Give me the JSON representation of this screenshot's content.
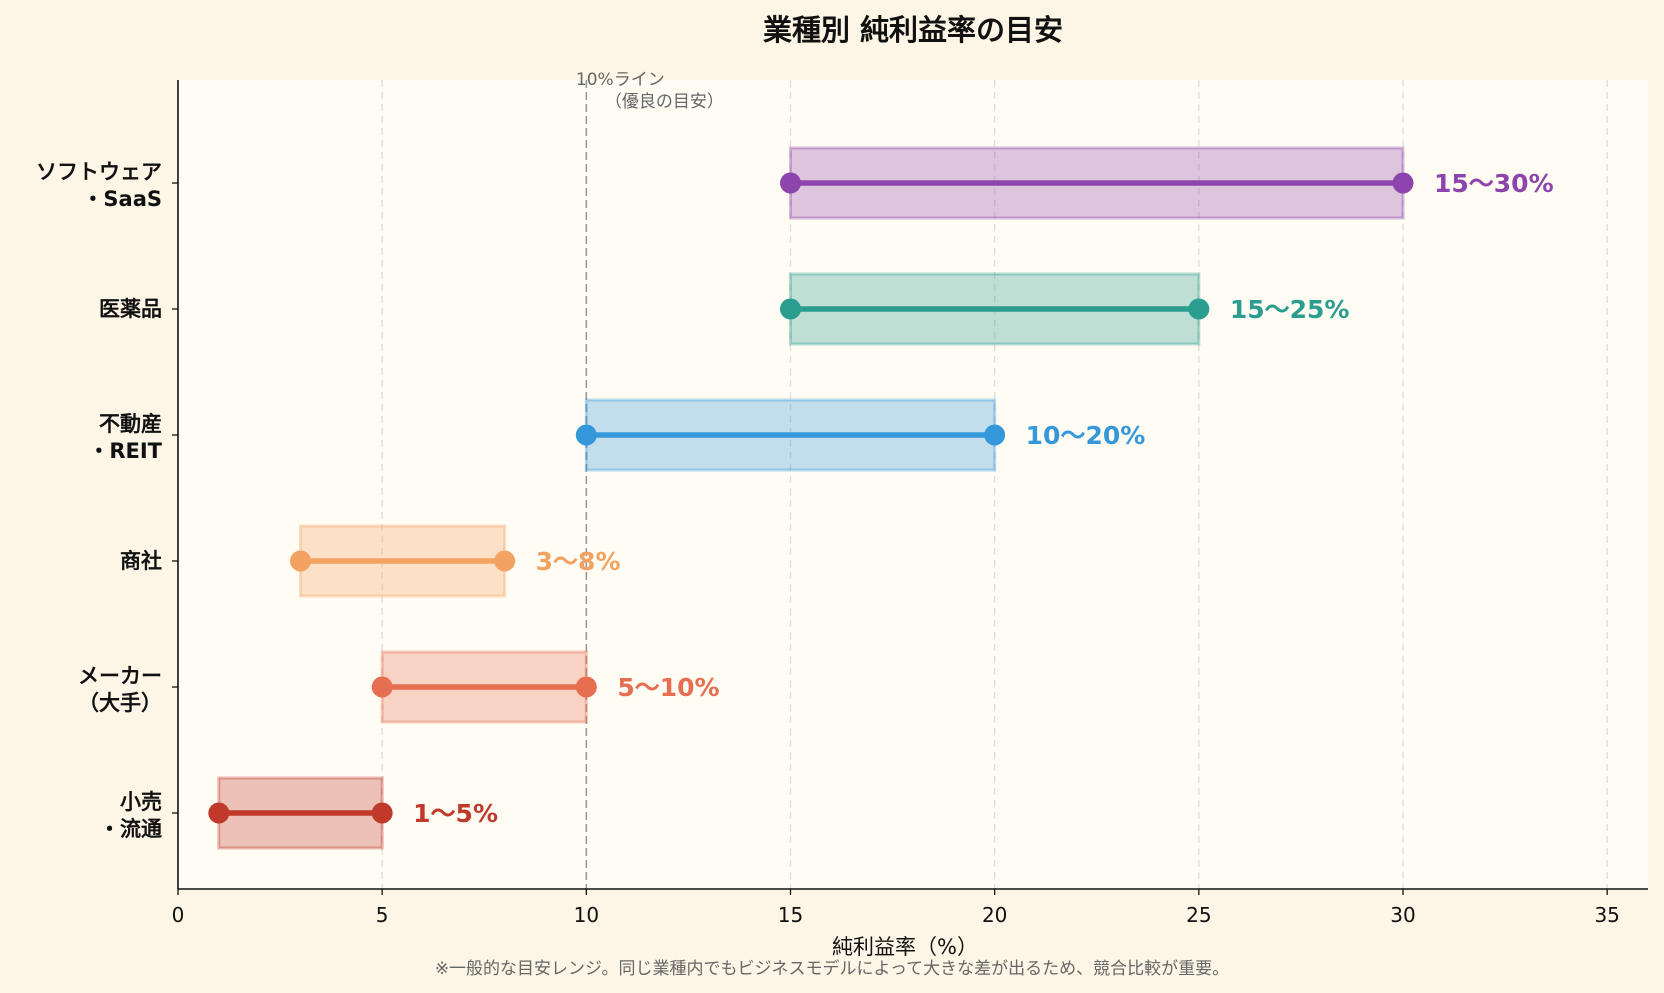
{
  "chart_data": {
    "type": "range-bar",
    "title": "業種別 純利益率の目安",
    "xlabel": "純利益率（%）",
    "xlim": [
      0,
      36
    ],
    "xticks": [
      0,
      5,
      10,
      15,
      20,
      25,
      30,
      35
    ],
    "grid": "x-dashed",
    "reference_line": {
      "x": 10,
      "label_line1": "10%ライン",
      "label_line2": "（優良の目安）"
    },
    "series": [
      {
        "category_lines": [
          "ソフトウェア",
          "・SaaS"
        ],
        "low": 15,
        "high": 30,
        "label": "15〜30%",
        "color": "#8e44ad"
      },
      {
        "category_lines": [
          "医薬品"
        ],
        "low": 15,
        "high": 25,
        "label": "15〜25%",
        "color": "#2a9d8f"
      },
      {
        "category_lines": [
          "不動産",
          "・REIT"
        ],
        "low": 10,
        "high": 20,
        "label": "10〜20%",
        "color": "#3498db"
      },
      {
        "category_lines": [
          "商社"
        ],
        "low": 3,
        "high": 8,
        "label": "3〜8%",
        "color": "#f4a261"
      },
      {
        "category_lines": [
          "メーカー",
          "（大手）"
        ],
        "low": 5,
        "high": 10,
        "label": "5〜10%",
        "color": "#e76f51"
      },
      {
        "category_lines": [
          "小売",
          "・流通"
        ],
        "low": 1,
        "high": 5,
        "label": "1〜5%",
        "color": "#c0392b"
      }
    ]
  },
  "footnote": "※一般的な目安レンジ。同じ業種内でもビジネスモデルによって大きな差が出るため、競合比較が重要。",
  "colors": {
    "page_bg": "#fdf6e6",
    "plot_bg": "#fffcf4"
  }
}
